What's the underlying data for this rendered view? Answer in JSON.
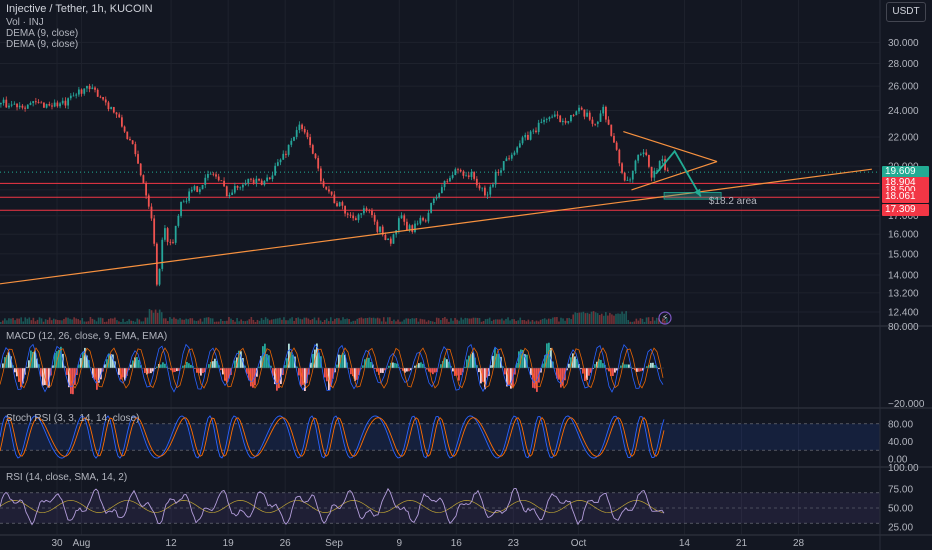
{
  "symbol_title": "Injective / Tether, 1h, KUCOIN",
  "currency_badge": "USDT",
  "price_legend": [
    "Vol · INJ",
    "DEMA (9, close)",
    "DEMA (9, close)"
  ],
  "colors": {
    "background": "#131722",
    "up": "#26a69a",
    "down": "#ef5350",
    "orange": "#f7913f",
    "teal": "#22ab94",
    "hline_red": "#f23645",
    "purple": "#7e57c2",
    "stoch_k": "#2962ff",
    "stoch_d": "#ff6d00",
    "rsi_line": "#b39ddb"
  },
  "chart_data": {
    "type": "candlestick",
    "title": "Injective / Tether, 1h, KUCOIN",
    "price_axis": {
      "ticks": [
        "30.000",
        "28.000",
        "26.000",
        "24.000",
        "22.000",
        "20.000",
        "18.500",
        "17.000",
        "16.000",
        "15.000",
        "14.000",
        "13.200",
        "12.400"
      ],
      "scale": "log",
      "ylim": [
        12.0,
        32.5
      ]
    },
    "x_axis": {
      "ticks": [
        "30",
        "Aug",
        "12",
        "19",
        "26",
        "Sep",
        "9",
        "16",
        "23",
        "Oct",
        "14",
        "21",
        "28"
      ],
      "range_days": [
        "Jul 23",
        "Oct 31"
      ]
    },
    "price_path": [
      {
        "d": 0,
        "p": 24.5
      },
      {
        "d": 2,
        "p": 25.8
      },
      {
        "d": 4,
        "p": 25.4
      },
      {
        "d": 6,
        "p": 23.8
      },
      {
        "d": 8,
        "p": 21.5
      },
      {
        "d": 9.5,
        "p": 19.0
      },
      {
        "d": 10.5,
        "p": 17.0
      },
      {
        "d": 11.2,
        "p": 13.4
      },
      {
        "d": 12,
        "p": 16.3
      },
      {
        "d": 13,
        "p": 15.3
      },
      {
        "d": 14,
        "p": 17.8
      },
      {
        "d": 16,
        "p": 18.6
      },
      {
        "d": 18,
        "p": 19.6
      },
      {
        "d": 20,
        "p": 18.2
      },
      {
        "d": 22,
        "p": 19.2
      },
      {
        "d": 24,
        "p": 18.8
      },
      {
        "d": 25,
        "p": 19.4
      },
      {
        "d": 27,
        "p": 21.0
      },
      {
        "d": 28.5,
        "p": 22.8
      },
      {
        "d": 30,
        "p": 21.6
      },
      {
        "d": 31,
        "p": 19.5
      },
      {
        "d": 33,
        "p": 17.8
      },
      {
        "d": 35,
        "p": 16.9
      },
      {
        "d": 37,
        "p": 17.3
      },
      {
        "d": 38,
        "p": 16.4
      },
      {
        "d": 40,
        "p": 15.6
      },
      {
        "d": 41,
        "p": 16.9
      },
      {
        "d": 42,
        "p": 16.2
      },
      {
        "d": 44,
        "p": 16.8
      },
      {
        "d": 46,
        "p": 18.6
      },
      {
        "d": 48,
        "p": 19.8
      },
      {
        "d": 50,
        "p": 19.3
      },
      {
        "d": 51.5,
        "p": 18.0
      },
      {
        "d": 53,
        "p": 19.7
      },
      {
        "d": 55,
        "p": 21.2
      },
      {
        "d": 57,
        "p": 22.2
      },
      {
        "d": 59,
        "p": 23.5
      },
      {
        "d": 61,
        "p": 23.3
      },
      {
        "d": 63,
        "p": 23.9
      },
      {
        "d": 65,
        "p": 23.0
      },
      {
        "d": 66,
        "p": 24.2
      },
      {
        "d": 67,
        "p": 22.0
      },
      {
        "d": 68,
        "p": 20.0
      },
      {
        "d": 69,
        "p": 18.7
      },
      {
        "d": 70,
        "p": 20.4
      },
      {
        "d": 71,
        "p": 20.8
      },
      {
        "d": 72,
        "p": 19.3
      },
      {
        "d": 73,
        "p": 20.3
      },
      {
        "d": 74,
        "p": 19.6
      }
    ],
    "last_price": "19.609",
    "horizontal_levels": [
      {
        "label": "18.904",
        "value": 18.904,
        "color": "#f23645"
      },
      {
        "label": "18.061",
        "value": 18.061,
        "color": "#f23645"
      },
      {
        "label": "17.309",
        "value": 17.309,
        "color": "#f23645"
      }
    ],
    "axis_price_tags": [
      {
        "label": "19.609",
        "value": 19.609,
        "color": "#22ab94"
      },
      {
        "label": "18.904",
        "value": 18.904,
        "color": "#f23645"
      },
      {
        "label": "18.500",
        "value": 18.5,
        "color": "#f23645"
      },
      {
        "label": "18.061",
        "value": 18.061,
        "color": "#f23645"
      },
      {
        "label": "17.309",
        "value": 17.309,
        "color": "#f23645"
      }
    ],
    "trendlines": [
      {
        "name": "support",
        "from": {
          "d": -8,
          "p": 13.6
        },
        "to": {
          "d": 99,
          "p": 19.8
        }
      },
      {
        "name": "triangle-upper",
        "from": {
          "d": 68.5,
          "p": 22.4
        },
        "to": {
          "d": 80,
          "p": 20.3
        }
      },
      {
        "name": "triangle-lower",
        "from": {
          "d": 69.5,
          "p": 18.5
        },
        "to": {
          "d": 80,
          "p": 20.3
        }
      }
    ],
    "projection": [
      {
        "d": 72.5,
        "p": 19.5
      },
      {
        "d": 74.8,
        "p": 21.0
      },
      {
        "d": 78,
        "p": 18.1
      }
    ],
    "annotation": {
      "text": "$18.2 area",
      "d": 79,
      "p": 17.9
    },
    "target_box": {
      "d0": 73.5,
      "d1": 80.5,
      "p0": 17.95,
      "p1": 18.35
    },
    "panels": [
      {
        "name": "MACD",
        "legend": "MACD (12, 26, close, 9, EMA, EMA)",
        "ticks": [
          "80.000",
          "−20.000"
        ]
      },
      {
        "name": "Stoch RSI",
        "legend": "Stoch RSI (3, 3, 14, 14, close)",
        "ticks": [
          "80.00",
          "40.00",
          "0.00"
        ],
        "band": [
          20,
          80
        ]
      },
      {
        "name": "RSI",
        "legend": "RSI (14, close, SMA, 14, 2)",
        "ticks": [
          "100.00",
          "75.00",
          "50.00",
          "25.00"
        ],
        "band": [
          30,
          70
        ]
      }
    ]
  }
}
